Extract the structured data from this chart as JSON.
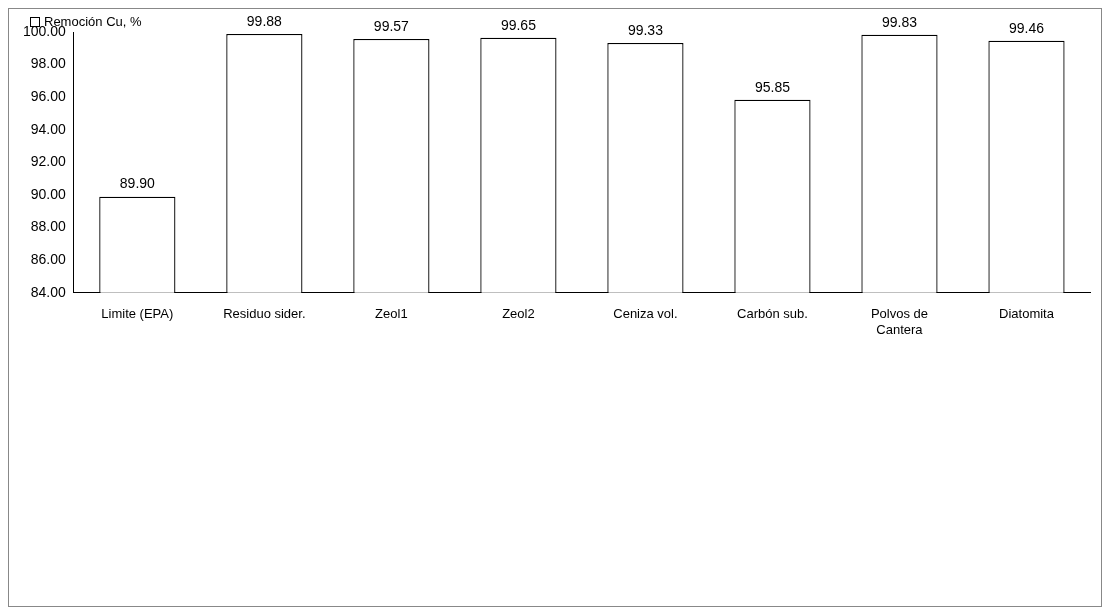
{
  "chart_data": {
    "type": "bar",
    "categories": [
      "Limite (EPA)",
      "Residuo sider.",
      "Zeol1",
      "Zeol2",
      "Ceniza vol.",
      "Carbón sub.",
      "Polvos de Cantera",
      "Diatomita"
    ],
    "series": [
      {
        "name": "Remoción Cu, %",
        "color": "#ffffff",
        "values": [
          89.9,
          99.88,
          99.57,
          99.65,
          99.33,
          95.85,
          99.83,
          99.46
        ],
        "value_labels": [
          "89.90",
          "99.88",
          "99.57",
          "99.65",
          "99.33",
          "95.85",
          "99.83",
          "99.46"
        ]
      }
    ],
    "ylim": [
      84,
      100
    ],
    "yticks": [
      {
        "value": 84,
        "label": "84.00"
      },
      {
        "value": 86,
        "label": "86.00"
      },
      {
        "value": 88,
        "label": "88.00"
      },
      {
        "value": 90,
        "label": "90.00"
      },
      {
        "value": 92,
        "label": "92.00"
      },
      {
        "value": 94,
        "label": "94.00"
      },
      {
        "value": 96,
        "label": "96.00"
      },
      {
        "value": 98,
        "label": "98.00"
      },
      {
        "value": 100,
        "label": "100.00"
      }
    ],
    "grid": false,
    "legend": "top left"
  }
}
